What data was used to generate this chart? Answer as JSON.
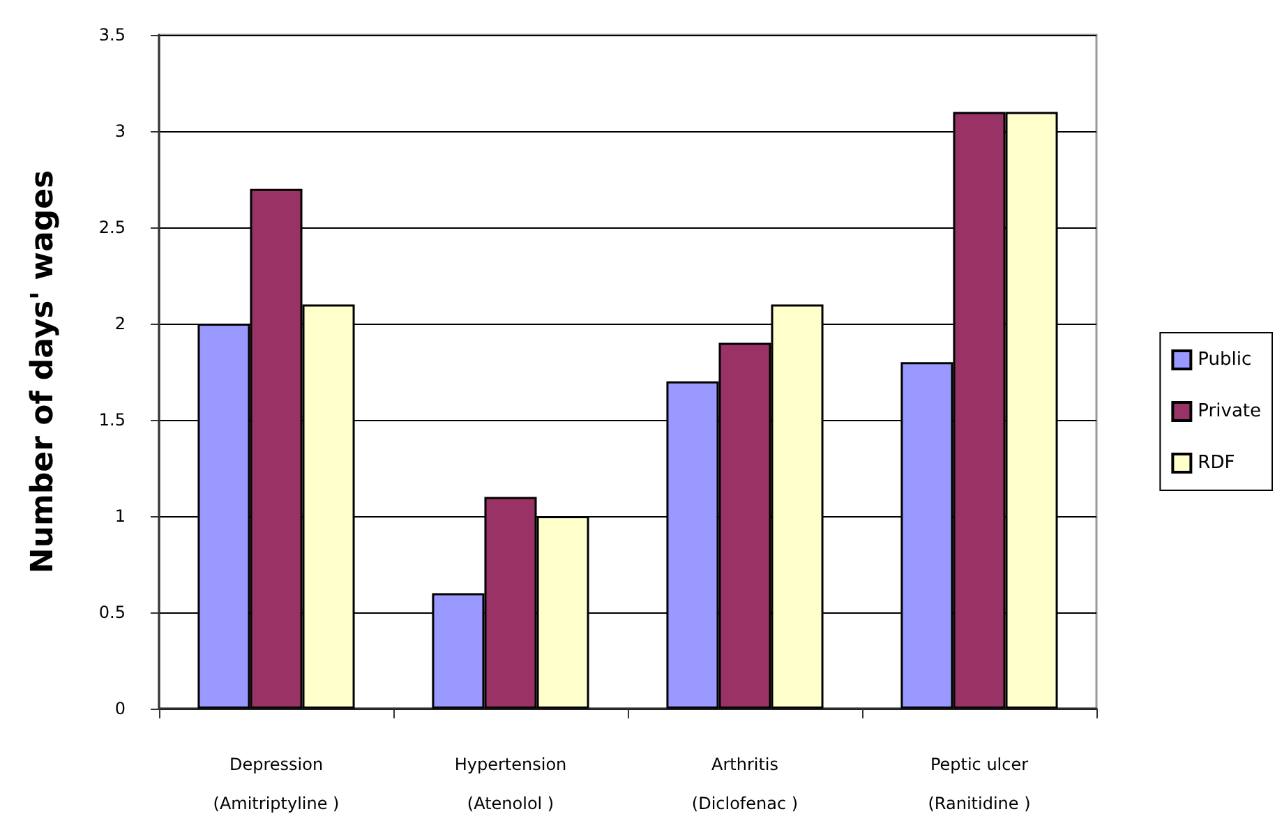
{
  "chart_data": {
    "type": "bar",
    "ylabel": "Number of days' wages",
    "categories": [
      "Depression\n(Amitriptyline )",
      "Hypertension\n(Atenolol )",
      "Arthritis\n(Diclofenac )",
      "Peptic ulcer\n(Ranitidine )"
    ],
    "series": [
      {
        "name": "Public",
        "color": "#9999ff",
        "values": [
          2,
          0.6,
          1.7,
          1.8
        ]
      },
      {
        "name": "Private",
        "color": "#993366",
        "values": [
          2.7,
          1.1,
          1.9,
          3.1
        ]
      },
      {
        "name": "RDF",
        "color": "#ffffcc",
        "values": [
          2.1,
          1,
          2.1,
          3.1
        ]
      }
    ],
    "ylim": [
      0,
      3.5
    ],
    "yticks": [
      0,
      0.5,
      1,
      1.5,
      2,
      2.5,
      3,
      3.5
    ],
    "grid": "y",
    "legend": "right"
  }
}
